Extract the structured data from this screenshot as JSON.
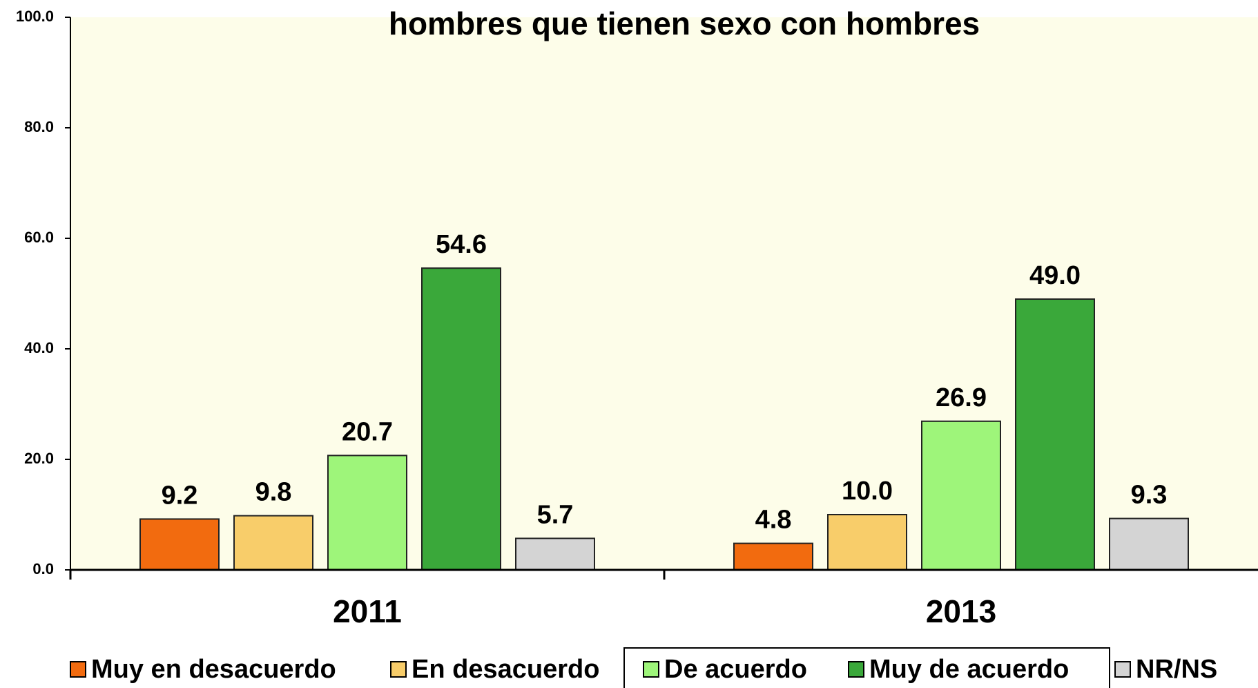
{
  "chart_data": {
    "type": "bar",
    "title": "hombres que tienen sexo con hombres",
    "categories": [
      "2011",
      "2013"
    ],
    "series": [
      {
        "name": "Muy en desacuerdo",
        "color": "#f26b0f",
        "values": [
          9.2,
          4.8
        ]
      },
      {
        "name": "En desacuerdo",
        "color": "#f8cd6a",
        "values": [
          9.8,
          10.0
        ],
        "value_labels": [
          "9.8",
          "10.0"
        ]
      },
      {
        "name": "De acuerdo",
        "color": "#9ef57a",
        "values": [
          20.7,
          26.9
        ]
      },
      {
        "name": "Muy de acuerdo",
        "color": "#3aa83a",
        "values": [
          54.6,
          49.0
        ],
        "value_labels": [
          "54.6",
          "49.0"
        ]
      },
      {
        "name": "NR/NS",
        "color": "#d4d4d4",
        "values": [
          5.7,
          9.3
        ]
      }
    ],
    "ylim": [
      0,
      100
    ],
    "yticks": [
      {
        "value": 0,
        "label": "0.0"
      },
      {
        "value": 20,
        "label": "20.0"
      },
      {
        "value": 40,
        "label": "40.0"
      },
      {
        "value": 60,
        "label": "60.0"
      },
      {
        "value": 80,
        "label": "80.0"
      },
      {
        "value": 100,
        "label": "100.0"
      }
    ],
    "legend": "bottom"
  }
}
